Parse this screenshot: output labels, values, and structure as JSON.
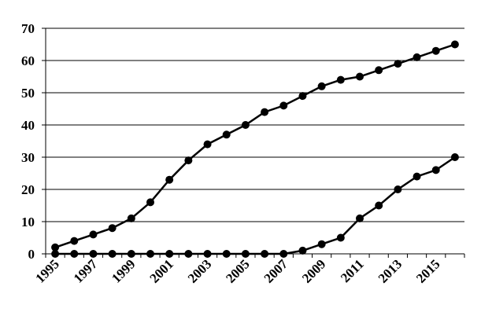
{
  "chart_data": {
    "type": "line",
    "categories": [
      "1995",
      null,
      "1997",
      null,
      "1999",
      null,
      "2001",
      null,
      "2003",
      null,
      "2005",
      null,
      "2007",
      null,
      "2009",
      null,
      "2011",
      null,
      "2013",
      null,
      "2015",
      null
    ],
    "series": [
      {
        "color": "#000000",
        "values": [
          2,
          4,
          6,
          8,
          11,
          16,
          23,
          29,
          34,
          37,
          40,
          44,
          46,
          49,
          52,
          54,
          55,
          57,
          59,
          61,
          63,
          65
        ]
      },
      {
        "color": "#000000",
        "values": [
          0,
          0,
          0,
          0,
          0,
          0,
          0,
          0,
          0,
          0,
          0,
          0,
          0,
          1,
          3,
          5,
          11,
          15,
          20,
          24,
          26,
          30
        ]
      }
    ],
    "ylim": [
      0,
      70
    ],
    "yticks": [
      0,
      10,
      20,
      30,
      40,
      50,
      60,
      70
    ],
    "grid": true
  }
}
